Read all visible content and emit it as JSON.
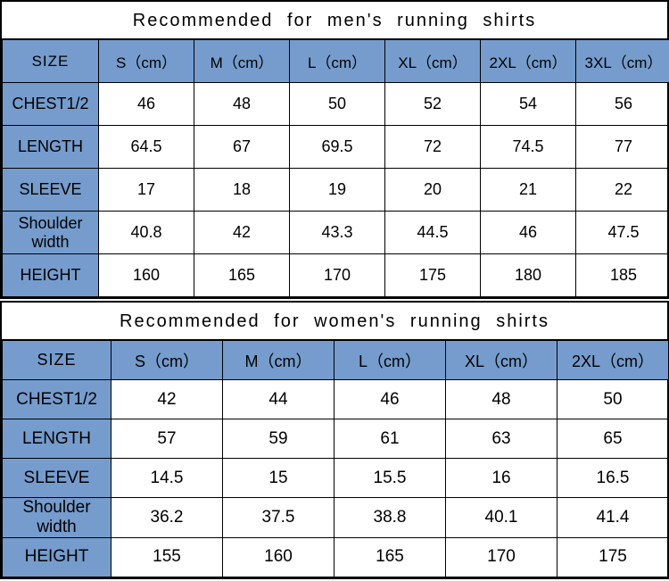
{
  "colors": {
    "header_bg": "#759ccd",
    "border": "#000000",
    "text": "#000000",
    "bg": "#ffffff"
  },
  "men": {
    "title": "Recommended for men's running shirts",
    "size_label": "SIZE",
    "columns": [
      "S（cm）",
      "M（cm）",
      "L（cm）",
      "XL（cm）",
      "2XL（cm）",
      "3XL（cm）"
    ],
    "rows": [
      {
        "label": "CHEST1/2",
        "values": [
          "46",
          "48",
          "50",
          "52",
          "54",
          "56"
        ]
      },
      {
        "label": "LENGTH",
        "values": [
          "64.5",
          "67",
          "69.5",
          "72",
          "74.5",
          "77"
        ]
      },
      {
        "label": "SLEEVE",
        "values": [
          "17",
          "18",
          "19",
          "20",
          "21",
          "22"
        ]
      },
      {
        "label": "Shoulder width",
        "values": [
          "40.8",
          "42",
          "43.3",
          "44.5",
          "46",
          "47.5"
        ]
      },
      {
        "label": "HEIGHT",
        "values": [
          "160",
          "165",
          "170",
          "175",
          "180",
          "185"
        ]
      }
    ]
  },
  "women": {
    "title": "Recommended for women's running shirts",
    "size_label": "SIZE",
    "columns": [
      "S（cm）",
      "M（cm）",
      "L（cm）",
      "XL（cm）",
      "2XL（cm）"
    ],
    "rows": [
      {
        "label": "CHEST1/2",
        "values": [
          "42",
          "44",
          "46",
          "48",
          "50"
        ]
      },
      {
        "label": "LENGTH",
        "values": [
          "57",
          "59",
          "61",
          "63",
          "65"
        ]
      },
      {
        "label": "SLEEVE",
        "values": [
          "14.5",
          "15",
          "15.5",
          "16",
          "16.5"
        ]
      },
      {
        "label": "Shoulder width",
        "values": [
          "36.2",
          "37.5",
          "38.8",
          "40.1",
          "41.4"
        ]
      },
      {
        "label": "HEIGHT",
        "values": [
          "155",
          "160",
          "165",
          "170",
          "175"
        ]
      }
    ]
  }
}
